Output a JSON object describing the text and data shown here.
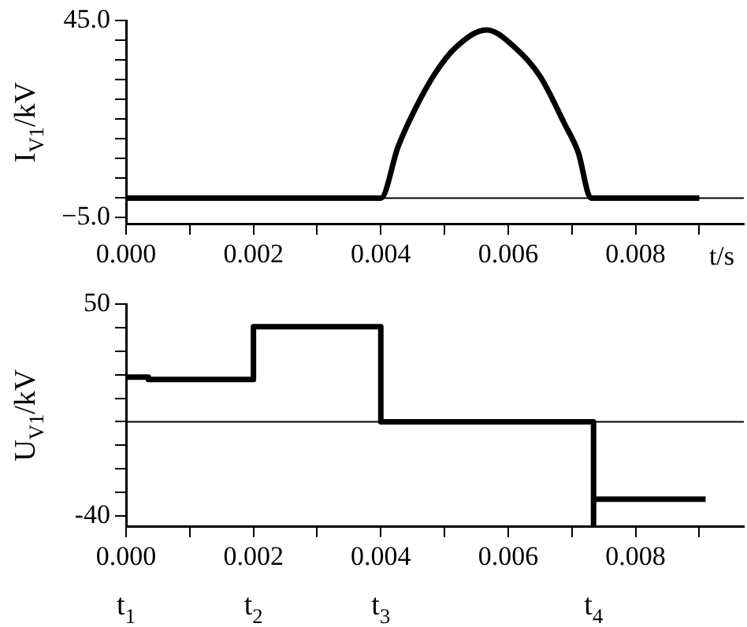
{
  "chart_data": [
    {
      "type": "line",
      "ylabel": "I$_{V1}$/kV",
      "xlabel": "t/s",
      "color": "#000000",
      "grid": false,
      "legend": false,
      "marker": "none",
      "line_style": "solid",
      "x": [
        0,
        0.004,
        0.00427,
        0.00452,
        0.00485,
        0.00518,
        0.00566,
        0.0061,
        0.0065,
        0.00688,
        0.0071,
        0.0073,
        0.009
      ],
      "values": [
        0,
        0,
        13,
        22,
        31.6,
        38.3,
        42.7,
        38.3,
        30.9,
        19,
        11.6,
        0,
        0
      ],
      "xlim": [
        0,
        0.0097
      ],
      "ylim": [
        -6.5,
        45
      ],
      "xticks": [
        {
          "value": 0,
          "label": "0.000"
        },
        {
          "value": 0.001,
          "label": null
        },
        {
          "value": 0.002,
          "label": "0.002"
        },
        {
          "value": 0.003,
          "label": null
        },
        {
          "value": 0.004,
          "label": "0.004"
        },
        {
          "value": 0.005,
          "label": null
        },
        {
          "value": 0.006,
          "label": "0.006"
        },
        {
          "value": 0.007,
          "label": null
        },
        {
          "value": 0.008,
          "label": "0.008"
        },
        {
          "value": 0.009,
          "label": null
        }
      ],
      "yticks": [
        {
          "value": -5,
          "label": "−5.0"
        },
        {
          "value": 0,
          "label": null
        },
        {
          "value": 5,
          "label": null
        },
        {
          "value": 10,
          "label": null
        },
        {
          "value": 15,
          "label": null
        },
        {
          "value": 20,
          "label": null
        },
        {
          "value": 25,
          "label": null
        },
        {
          "value": 30,
          "label": null
        },
        {
          "value": 35,
          "label": null
        },
        {
          "value": 40,
          "label": null
        },
        {
          "value": 45,
          "label": "45.0"
        }
      ],
      "ref_lines": [
        {
          "axis": "y",
          "value": 0,
          "color": "#000000"
        }
      ]
    },
    {
      "type": "step",
      "ylabel": "U$_{V1}$/kV",
      "color": "#000000",
      "grid": false,
      "legend": false,
      "marker": "none",
      "line_style": "solid",
      "x": [
        0,
        0.00035,
        0.002,
        0.004,
        0.00734,
        0.00734,
        0.0091
      ],
      "values": [
        19,
        18,
        40.5,
        0,
        -44,
        -33,
        -33
      ],
      "xlim": [
        0,
        0.0097
      ],
      "ylim": [
        -44.5,
        50
      ],
      "xticks": [
        {
          "value": 0,
          "label": "0.000"
        },
        {
          "value": 0.001,
          "label": null
        },
        {
          "value": 0.002,
          "label": "0.002"
        },
        {
          "value": 0.003,
          "label": null
        },
        {
          "value": 0.004,
          "label": "0.004"
        },
        {
          "value": 0.005,
          "label": null
        },
        {
          "value": 0.006,
          "label": "0.006"
        },
        {
          "value": 0.007,
          "label": null
        },
        {
          "value": 0.008,
          "label": "0.008"
        },
        {
          "value": 0.009,
          "label": null
        }
      ],
      "yticks": [
        {
          "value": -40,
          "label": "-40"
        },
        {
          "value": -30,
          "label": null
        },
        {
          "value": -20,
          "label": null
        },
        {
          "value": -10,
          "label": null
        },
        {
          "value": 0,
          "label": null
        },
        {
          "value": 10,
          "label": null
        },
        {
          "value": 20,
          "label": null
        },
        {
          "value": 30,
          "label": null
        },
        {
          "value": 40,
          "label": null
        },
        {
          "value": 50,
          "label": "50"
        }
      ],
      "ref_lines": [
        {
          "axis": "y",
          "value": 0,
          "color": "#000000"
        }
      ],
      "annotations": [
        "t$_{1}$",
        "t$_{2}$",
        "t$_{3}$",
        "t$_{4}$"
      ]
    }
  ]
}
